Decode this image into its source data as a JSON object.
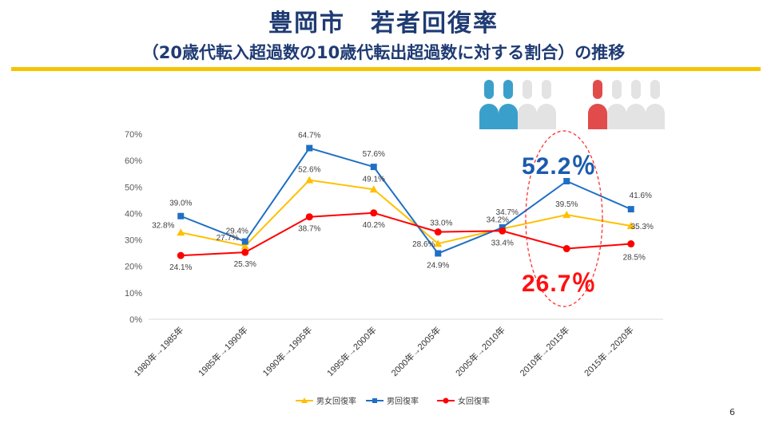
{
  "title": "豊岡市　若者回復率",
  "subtitle": "（20歳代転入超過数の10歳代転出超過数に対する割合）の推移",
  "page_number": "6",
  "callouts": {
    "male_2015": "52.2％",
    "female_2015": "26.7％"
  },
  "icons": {
    "male_group": [
      "person-blue",
      "person-blue",
      "person-grey",
      "person-grey"
    ],
    "female_group": [
      "person-red",
      "person-grey",
      "person-grey",
      "person-grey"
    ]
  },
  "colors": {
    "title": "#1F3B73",
    "accent_rule": "#F5C400",
    "total": "#FFC000",
    "male": "#1F6FC5",
    "female": "#FF0000",
    "male_icon": "#3AA0CB",
    "female_icon": "#E24B4B"
  },
  "chart_data": {
    "type": "line",
    "categories": [
      "1980年→1985年",
      "1985年→1990年",
      "1990年→1995年",
      "1995年→2000年",
      "2000年→2005年",
      "2005年→2010年",
      "2010年→2015年",
      "2015年→2020年"
    ],
    "ylim": [
      0,
      70
    ],
    "yticks": [
      "0%",
      "10%",
      "20%",
      "30%",
      "40%",
      "50%",
      "60%",
      "70%"
    ],
    "ytick_values": [
      0,
      10,
      20,
      30,
      40,
      50,
      60,
      70
    ],
    "grid": false,
    "legend_position": "bottom",
    "series": [
      {
        "name": "男女回復率",
        "color": "#FFC000",
        "marker": "triangle",
        "values": [
          32.8,
          27.7,
          52.6,
          49.1,
          28.6,
          34.2,
          39.5,
          35.3
        ],
        "labels": [
          "32.8%",
          "27.7%",
          "52.6%",
          "49.1%",
          "28.6%",
          "34.2%",
          "39.5%",
          "35.3%"
        ]
      },
      {
        "name": "男回復率",
        "color": "#1F6FC5",
        "marker": "square",
        "values": [
          39.0,
          29.4,
          64.7,
          57.6,
          24.9,
          34.7,
          52.2,
          41.6
        ],
        "labels": [
          "39.0%",
          "29.4%",
          "64.7%",
          "57.6%",
          "24.9%",
          "34.7%",
          "",
          "41.6%"
        ]
      },
      {
        "name": "女回復率",
        "color": "#FF0000",
        "marker": "circle",
        "values": [
          24.1,
          25.3,
          38.7,
          40.2,
          33.0,
          33.4,
          26.7,
          28.5
        ],
        "labels": [
          "24.1%",
          "25.3%",
          "38.7%",
          "40.2%",
          "33.0%",
          "33.4%",
          "",
          "28.5%"
        ]
      }
    ]
  }
}
